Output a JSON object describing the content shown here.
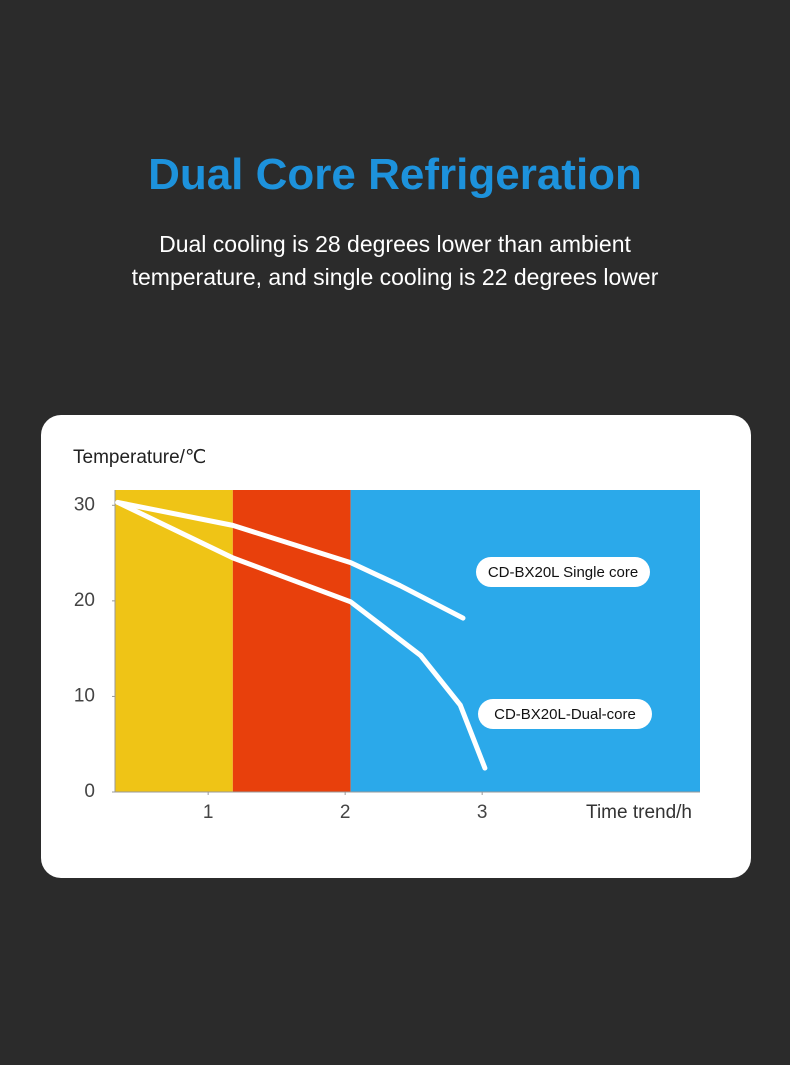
{
  "chart_data": {
    "type": "line",
    "title": "Dual Core Refrigeration",
    "subtitle": "Dual cooling is 28 degrees lower than ambient temperature, and single cooling is 22 degrees lower",
    "ylabel": "Temperature/℃",
    "xlabel": "Time trend/h",
    "xlim": [
      0.32,
      4.59
    ],
    "xticks": [
      1,
      2,
      3
    ],
    "ylim": [
      0,
      31.6
    ],
    "yticks": [
      0,
      10,
      20,
      30
    ],
    "bands": [
      {
        "from": 0.32,
        "to": 1.18,
        "color": "#efc416"
      },
      {
        "from": 1.18,
        "to": 2.04,
        "color": "#e8400c"
      },
      {
        "from": 2.04,
        "to": 4.59,
        "color": "#2ba9ea"
      }
    ],
    "series": [
      {
        "name": "CD-BX20L Single core",
        "color": "#ffffff",
        "x": [
          0.34,
          1.18,
          2.04,
          2.4,
          2.86
        ],
        "values": [
          30.3,
          27.9,
          24.0,
          21.6,
          18.2
        ]
      },
      {
        "name": "CD-BX20L-Dual-core",
        "color": "#ffffff",
        "x": [
          0.34,
          1.18,
          2.04,
          2.55,
          2.84,
          3.02
        ],
        "values": [
          30.3,
          24.5,
          19.9,
          14.3,
          9.1,
          2.5
        ]
      }
    ]
  }
}
